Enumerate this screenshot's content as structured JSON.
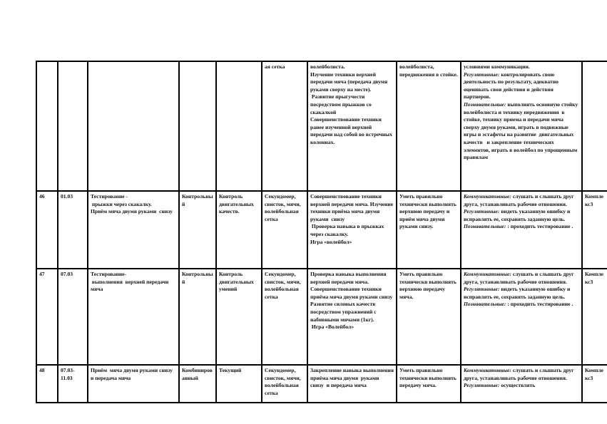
{
  "rows": [
    {
      "num": "",
      "date": "",
      "topic": "",
      "type": "",
      "control": "",
      "equipment": "ая сетка",
      "content": "волейболиста.\nИзучение техники верхней передачи мяча (передача двумя руками сверху на месте).\n Развитие прыгучести посредством прыжков со скакалкой\nСовершенствование техники ранее изученной верхней передачи над собой во встречных колоннах.",
      "skills": "волейболиста, передвижения в стойке.",
      "uud": [
        {
          "label": "",
          "text": "условиями коммуникации."
        },
        {
          "label": "Регулятивные:",
          "text": " контролировать свою деятельность по результату, адекватно оценивать свои действия и действия партнеров."
        },
        {
          "label": "Познавательные:",
          "text": " выполнять основную стойку волейболиста и технику передвижения  в стойке, технику приема и передачи мяча сверху двумя руками, играть в подвижные игры и эстафеты на развитие  двигательных качеств   и закрепление технических элементов, играть в волейбол по упрощенным правилам"
        }
      ],
      "last": ""
    },
    {
      "num": "46",
      "date": "01.03",
      "topic": "Тестирование -\n прыжки через скакалку.\nПриём мяча двумя руками  снизу",
      "type": "Контрольный",
      "control": "Контроль двигательных качеств.",
      "equipment": "Секундомер, свисток, мячи, волейбольная сетка",
      "content": "Совершенствование техники верхней передачи мяча. Изучение техники приёма мяча двумя руками  снизу\n Проверка навыка в прыжках через скакалку.\nИгра «волейбол»",
      "skills": "Уметь правильно технически выполнять верхнюю передачу и приём мяча двумя руками снизу.",
      "uud": [
        {
          "label": "Коммуникативные:",
          "text": " слушать и слышать друг друга, устанавливать рабочие отношения."
        },
        {
          "label": "Регулятивные:",
          "text": " видеть указанную ошибку и исправлять ее, сохранять заданную цель."
        },
        {
          "label": "Познавательные:",
          "text": " : проходить тестирование ."
        }
      ],
      "last": "Комплекс3"
    },
    {
      "num": "47",
      "date": "07.03",
      "topic": "Тестирование-\n выполнения  верхней передачи мяча",
      "type": "Контрольный",
      "control": "Контроль двигательных умений",
      "equipment": "Секундомер, свисток, мячи, волейбольная сетка",
      "content": "Проверка навыка выполнения  верхней передачи мяча.\nСовершенствование техники приёма мяча двумя руками снизу\nРазвитие силовых качеств посредством упражнений с набивными мячами (1кг).\n Игра «Волейбол»",
      "skills": "Уметь правильно технически выполнять верхнюю передачу мяча.",
      "uud": [
        {
          "label": "Коммуникативные:",
          "text": " слушать и слышать друг друга, устанавливать рабочие отношения."
        },
        {
          "label": "Регулятивные:",
          "text": " видеть указанную ошибку и исправлять ее, сохранять заданную цель."
        },
        {
          "label": "Познавательные:",
          "text": " : проходить тестирование ."
        }
      ],
      "last": "Комплекс3"
    },
    {
      "num": "48",
      "date": "07.03-\n11.03",
      "topic": "Приём  мяча двумя руками снизу  и передача мяча",
      "type": "Комбинированный",
      "control": "Текущий",
      "equipment": "Секундомер, свисток, мячи, волейбольная сетка",
      "content": "Закрепление навыка выполнения приёма мяча двумя  руками снизу  и передача мяча",
      "skills": "Уметь правильно технически выполнять передачу мяча.",
      "uud": [
        {
          "label": "Коммуникативные:",
          "text": " слушать и слышать друг друга, устанавливать рабочие отношения."
        },
        {
          "label": "Регулятивные:",
          "text": " осуществлять"
        }
      ],
      "last": "Комплекс3"
    }
  ]
}
